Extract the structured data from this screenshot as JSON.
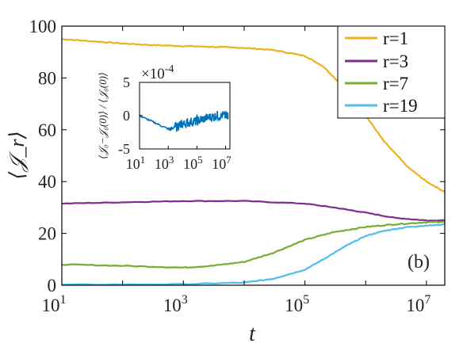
{
  "chart_data": [
    {
      "type": "line",
      "panel_label": "(b)",
      "xlabel": "t",
      "ylabel": "⟨𝒥_r⟩",
      "x_scale": "log10",
      "xlim": [
        10,
        20000000
      ],
      "ylim": [
        0,
        100
      ],
      "x_ticks": [
        10,
        1000,
        100000,
        10000000
      ],
      "x_tick_labels": [
        {
          "base": "10",
          "exp": "1"
        },
        {
          "base": "10",
          "exp": "3"
        },
        {
          "base": "10",
          "exp": "5"
        },
        {
          "base": "10",
          "exp": "7"
        }
      ],
      "y_ticks": [
        0,
        20,
        40,
        60,
        80,
        100
      ],
      "y_tick_labels": [
        "0",
        "20",
        "40",
        "60",
        "80",
        "100"
      ],
      "legend_position": "top-right",
      "series": [
        {
          "name": "r=1",
          "color": "#EDB120",
          "x": [
            10,
            30,
            100,
            300,
            1000,
            3000,
            10000,
            30000,
            100000,
            200000,
            500000,
            1000000,
            2000000,
            5000000,
            10000000,
            20000000
          ],
          "y": [
            95,
            94.2,
            93.3,
            92.7,
            92.3,
            92,
            91.6,
            90.8,
            88.5,
            84.5,
            75,
            65.5,
            55.5,
            45.5,
            40,
            36
          ]
        },
        {
          "name": "r=3",
          "color": "#7E2F8E",
          "x": [
            10,
            100,
            1000,
            10000,
            100000,
            300000,
            1000000,
            3000000,
            10000000,
            20000000
          ],
          "y": [
            31.5,
            32,
            32.5,
            32.5,
            31.5,
            30,
            28,
            26,
            25,
            25
          ]
        },
        {
          "name": "r=7",
          "color": "#77AC30",
          "x": [
            10,
            100,
            1000,
            3000,
            10000,
            30000,
            100000,
            300000,
            1000000,
            3000000,
            10000000,
            20000000
          ],
          "y": [
            8,
            7.5,
            6.8,
            7.5,
            9,
            12.5,
            17.5,
            20.5,
            22.5,
            23.5,
            24.3,
            24.5
          ]
        },
        {
          "name": "r=19",
          "color": "#4DBEEE",
          "x": [
            10,
            1000,
            10000,
            30000,
            100000,
            200000,
            500000,
            1000000,
            2000000,
            5000000,
            10000000,
            20000000
          ],
          "y": [
            0.2,
            0.4,
            1,
            2.5,
            6,
            10,
            15.5,
            19,
            21,
            22.5,
            23,
            23.5
          ]
        }
      ]
    },
    {
      "type": "line",
      "xlabel": "",
      "ylabel": "⟨𝒥₀−𝒥₀(0)⟩ / ⟨𝒥₀(0)⟩",
      "x_scale": "log10",
      "xlim": [
        10,
        20000000
      ],
      "ylim": [
        -5,
        5
      ],
      "y_multiplier": "×10",
      "y_multiplier_exp": "-4",
      "x_ticks": [
        10,
        1000,
        100000,
        10000000
      ],
      "x_tick_labels": [
        {
          "base": "10",
          "exp": "1"
        },
        {
          "base": "10",
          "exp": "3"
        },
        {
          "base": "10",
          "exp": "5"
        },
        {
          "base": "10",
          "exp": "7"
        }
      ],
      "y_ticks": [
        -5,
        0,
        5
      ],
      "y_tick_labels": [
        "-5",
        "0",
        "5"
      ],
      "series": [
        {
          "color": "#0072BD",
          "x": [
            10,
            100,
            1000,
            2000,
            5000,
            10000,
            30000,
            100000,
            300000,
            1000000,
            3000000,
            10000000,
            15000000
          ],
          "y": [
            0,
            -1,
            -2,
            -1.9,
            -1.5,
            -1.2,
            -1,
            -0.8,
            -0.5,
            -0.2,
            0,
            0,
            0
          ]
        }
      ]
    }
  ]
}
